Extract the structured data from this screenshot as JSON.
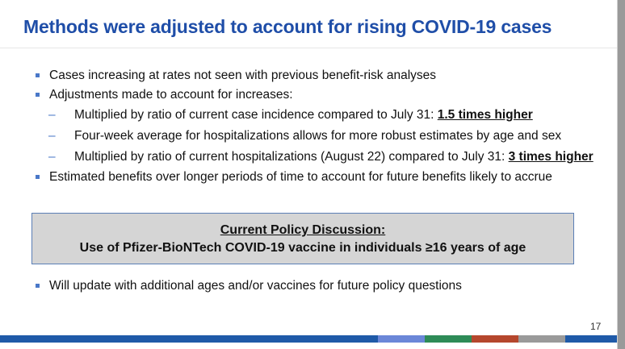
{
  "slide": {
    "title": "Methods were adjusted to account for rising COVID-19 cases",
    "bullets": [
      {
        "text": "Cases increasing at rates not seen with previous benefit-risk analyses"
      },
      {
        "text": "Adjustments made to account for increases:"
      }
    ],
    "sub_bullets": [
      {
        "prefix": "Multiplied by ratio of current case incidence compared to July 31: ",
        "highlight": "1.5 times higher"
      },
      {
        "prefix": "Four-week average for hospitalizations allows for more robust estimates by age and sex",
        "highlight": ""
      },
      {
        "prefix": "Multiplied by ratio of current hospitalizations (August 22) compared to July 31: ",
        "highlight": "3 times higher"
      }
    ],
    "bullet3": "Estimated benefits over longer periods of time to account for future benefits likely to accrue",
    "policy": {
      "title": "Current Policy Discussion:",
      "subtitle": "Use of Pfizer-BioNTech COVID-19 vaccine in individuals ≥16 years of age"
    },
    "bottom_bullet": "Will update with additional ages and/or vaccines for future policy questions",
    "page_number": "17",
    "dash": "–"
  },
  "colors": {
    "title": "#1f4ea8",
    "bullet": "#4a78c8",
    "footer_main": "#1f5aa8",
    "footer_segments": [
      "#6b87d8",
      "#2e8b57",
      "#b5472d",
      "#9a9a9a"
    ]
  }
}
